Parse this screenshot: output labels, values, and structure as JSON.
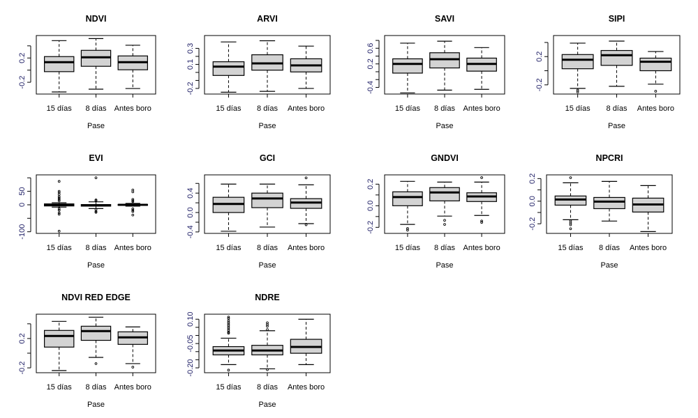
{
  "chart_data": [
    {
      "type": "box",
      "title": "NDVI",
      "xlabel": "Pase",
      "categories": [
        "15 días",
        "8 días",
        "Antes boro"
      ],
      "ylim": [
        -0.394,
        0.57
      ],
      "yticks": [
        0.4,
        0.2,
        0.0,
        -0.2
      ],
      "ytick_labels": [
        "",
        "0.2",
        "",
        "-0.2"
      ],
      "boxes": [
        {
          "whisker_low": -0.36,
          "q1": -0.025,
          "median": 0.131,
          "q3": 0.223,
          "whisker_high": 0.486,
          "outliers": []
        },
        {
          "whisker_low": -0.314,
          "q1": 0.063,
          "median": 0.211,
          "q3": 0.326,
          "whisker_high": 0.52,
          "outliers": []
        },
        {
          "whisker_low": -0.303,
          "q1": 0.006,
          "median": 0.131,
          "q3": 0.234,
          "whisker_high": 0.41,
          "outliers": []
        }
      ]
    },
    {
      "type": "box",
      "title": "ARVI",
      "xlabel": "Pase",
      "categories": [
        "15 días",
        "8 días",
        "Antes boro"
      ],
      "ylim": [
        -0.27,
        0.46
      ],
      "yticks": [
        0.3,
        0.2,
        0.1,
        0.0,
        -0.1,
        -0.2
      ],
      "ytick_labels": [
        "0.3",
        "",
        "0.1",
        "",
        "",
        "-0.2"
      ],
      "boxes": [
        {
          "whisker_low": -0.247,
          "q1": -0.038,
          "median": 0.072,
          "q3": 0.133,
          "whisker_high": 0.38,
          "outliers": []
        },
        {
          "whisker_low": -0.236,
          "q1": 0.028,
          "median": 0.112,
          "q3": 0.22,
          "whisker_high": 0.395,
          "outliers": []
        },
        {
          "whisker_low": -0.2,
          "q1": 0.006,
          "median": 0.087,
          "q3": 0.17,
          "whisker_high": 0.328,
          "outliers": []
        }
      ]
    },
    {
      "type": "box",
      "title": "SAVI",
      "xlabel": "Pase",
      "categories": [
        "15 días",
        "8 días",
        "Antes boro"
      ],
      "ylim": [
        -0.57,
        0.925
      ],
      "yticks": [
        0.8,
        0.6,
        0.4,
        0.2,
        0.0,
        -0.2,
        -0.4
      ],
      "ytick_labels": [
        "",
        "0.6",
        "",
        "0.2",
        "",
        "",
        "-0.4"
      ],
      "boxes": [
        {
          "whisker_low": -0.54,
          "q1": -0.035,
          "median": 0.2,
          "q3": 0.33,
          "whisker_high": 0.73,
          "outliers": []
        },
        {
          "whisker_low": -0.47,
          "q1": 0.097,
          "median": 0.32,
          "q3": 0.485,
          "whisker_high": 0.78,
          "outliers": []
        },
        {
          "whisker_low": -0.45,
          "q1": 0.015,
          "median": 0.2,
          "q3": 0.348,
          "whisker_high": 0.617,
          "outliers": []
        }
      ]
    },
    {
      "type": "box",
      "title": "SIPI",
      "xlabel": "Pase",
      "categories": [
        "15 días",
        "8 días",
        "Antes boro"
      ],
      "ylim": [
        -0.33,
        0.498
      ],
      "yticks": [
        0.4,
        0.2,
        0.0,
        -0.2
      ],
      "ytick_labels": [
        "",
        "0.2",
        "",
        "-0.2"
      ],
      "boxes": [
        {
          "whisker_low": -0.25,
          "q1": 0.028,
          "median": 0.155,
          "q3": 0.229,
          "whisker_high": 0.39,
          "outliers": [
            -0.276,
            -0.3
          ]
        },
        {
          "whisker_low": -0.22,
          "q1": 0.076,
          "median": 0.219,
          "q3": 0.286,
          "whisker_high": 0.419,
          "outliers": []
        },
        {
          "whisker_low": -0.19,
          "q1": 0.0,
          "median": 0.127,
          "q3": 0.178,
          "whisker_high": 0.272,
          "outliers": [
            -0.29
          ]
        }
      ]
    },
    {
      "type": "box",
      "title": "EVI",
      "xlabel": "Pase",
      "categories": [
        "15 días",
        "8 días",
        "Antes boro"
      ],
      "ylim": [
        -106,
        111
      ],
      "yticks": [
        100,
        50,
        0,
        -50,
        -100
      ],
      "ytick_labels": [
        "",
        "50",
        "0",
        "",
        "-100"
      ],
      "boxes": [
        {
          "whisker_low": -8.6,
          "q1": -4.3,
          "median": 0,
          "q3": 3.4,
          "whisker_high": 7.7,
          "outliers": [
            86.7,
            50,
            45,
            38,
            30,
            25,
            20,
            15,
            -15,
            -20,
            -30,
            -35,
            -98
          ]
        },
        {
          "whisker_low": -14,
          "q1": -5,
          "median": -2,
          "q3": 1,
          "whisker_high": 11,
          "outliers": [
            100,
            18,
            15,
            -18,
            -25,
            -28
          ]
        },
        {
          "whisker_low": -5,
          "q1": -2,
          "median": 0,
          "q3": 1.5,
          "whisker_high": 5,
          "outliers": [
            55,
            48,
            20,
            15,
            12,
            -15,
            -20,
            -25,
            -38
          ]
        }
      ]
    },
    {
      "type": "box",
      "title": "GCI",
      "xlabel": "Pase",
      "categories": [
        "15 días",
        "8 días",
        "Antes boro"
      ],
      "ylim": [
        -0.43,
        0.776
      ],
      "yticks": [
        0.6,
        0.4,
        0.2,
        0.0,
        -0.2,
        -0.4
      ],
      "ytick_labels": [
        "",
        "0.4",
        "",
        "0.0",
        "",
        "-0.4"
      ],
      "boxes": [
        {
          "whisker_low": -0.386,
          "q1": 0.0,
          "median": 0.176,
          "q3": 0.314,
          "whisker_high": 0.586,
          "outliers": []
        },
        {
          "whisker_low": -0.3,
          "q1": 0.1,
          "median": 0.29,
          "q3": 0.4,
          "whisker_high": 0.586,
          "outliers": []
        },
        {
          "whisker_low": -0.229,
          "q1": 0.086,
          "median": 0.205,
          "q3": 0.286,
          "whisker_high": 0.571,
          "outliers": [
            0.714,
            -0.252
          ]
        }
      ]
    },
    {
      "type": "box",
      "title": "GNDVI",
      "xlabel": "Pase",
      "categories": [
        "15 días",
        "8 días",
        "Antes boro"
      ],
      "ylim": [
        -0.256,
        0.286
      ],
      "yticks": [
        0.2,
        0.1,
        0.0,
        -0.1,
        -0.2
      ],
      "ytick_labels": [
        "0.2",
        "",
        "0.0",
        "",
        "-0.2"
      ],
      "boxes": [
        {
          "whisker_low": -0.173,
          "q1": 0.0,
          "median": 0.08,
          "q3": 0.129,
          "whisker_high": 0.226,
          "outliers": [
            -0.211,
            -0.226
          ]
        },
        {
          "whisker_low": -0.096,
          "q1": 0.045,
          "median": 0.123,
          "q3": 0.168,
          "whisker_high": 0.219,
          "outliers": [
            -0.135,
            -0.173
          ]
        },
        {
          "whisker_low": -0.09,
          "q1": 0.039,
          "median": 0.086,
          "q3": 0.12,
          "whisker_high": 0.219,
          "outliers": [
            0.26,
            -0.141,
            -0.154
          ]
        }
      ]
    },
    {
      "type": "box",
      "title": "NPCRI",
      "xlabel": "Pase",
      "categories": [
        "15 días",
        "8 días",
        "Antes boro"
      ],
      "ylim": [
        -0.285,
        0.233
      ],
      "yticks": [
        0.2,
        0.1,
        0.0,
        -0.1,
        -0.2
      ],
      "ytick_labels": [
        "0.2",
        "",
        "0.0",
        "",
        "-0.2"
      ],
      "boxes": [
        {
          "whisker_low": -0.164,
          "q1": -0.035,
          "median": 0.015,
          "q3": 0.046,
          "whisker_high": 0.163,
          "outliers": [
            0.208,
            -0.176,
            -0.193,
            -0.209,
            -0.244
          ]
        },
        {
          "whisker_low": -0.176,
          "q1": -0.066,
          "median": -0.004,
          "q3": 0.033,
          "whisker_high": 0.175,
          "outliers": []
        },
        {
          "whisker_low": -0.269,
          "q1": -0.096,
          "median": -0.029,
          "q3": 0.027,
          "whisker_high": 0.138,
          "outliers": []
        }
      ]
    },
    {
      "type": "box",
      "title": "NDVI RED EDGE",
      "xlabel": "Pase",
      "categories": [
        "15 días",
        "8 días",
        "Antes boro"
      ],
      "ylim": [
        -0.266,
        0.531
      ],
      "yticks": [
        0.4,
        0.2,
        0.0,
        -0.2
      ],
      "ytick_labels": [
        "",
        "0.2",
        "",
        "-0.2"
      ],
      "boxes": [
        {
          "whisker_low": -0.236,
          "q1": 0.083,
          "median": 0.235,
          "q3": 0.31,
          "whisker_high": 0.433,
          "outliers": []
        },
        {
          "whisker_low": -0.057,
          "q1": 0.175,
          "median": 0.301,
          "q3": 0.367,
          "whisker_high": 0.49,
          "outliers": [
            -0.142
          ]
        },
        {
          "whisker_low": -0.142,
          "q1": 0.12,
          "median": 0.216,
          "q3": 0.291,
          "whisker_high": 0.358,
          "outliers": [
            -0.19
          ]
        }
      ]
    },
    {
      "type": "box",
      "title": "NDRE",
      "xlabel": "Pase",
      "categories": [
        "15 días",
        "8 días",
        "Antes boro"
      ],
      "ylim": [
        -0.23,
        0.131
      ],
      "yticks": [
        0.1,
        0.05,
        0.0,
        -0.05,
        -0.1,
        -0.15,
        -0.2
      ],
      "ytick_labels": [
        "0.10",
        "",
        "",
        "-0.05",
        "",
        "",
        "-0.20"
      ],
      "boxes": [
        {
          "whisker_low": -0.18,
          "q1": -0.12,
          "median": -0.093,
          "q3": -0.069,
          "whisker_high": -0.017,
          "outliers": [
            0.113,
            0.104,
            0.09,
            0.08,
            0.07,
            0.06,
            0.05,
            0.04,
            0.03,
            0.02,
            0.014,
            -0.214
          ]
        },
        {
          "whisker_low": -0.206,
          "q1": -0.12,
          "median": -0.093,
          "q3": -0.061,
          "whisker_high": 0.029,
          "outliers": [
            0.078,
            0.067,
            0.057,
            0.036,
            -0.211
          ]
        },
        {
          "whisker_low": -0.18,
          "q1": -0.11,
          "median": -0.071,
          "q3": -0.024,
          "whisker_high": 0.1,
          "outliers": []
        }
      ]
    }
  ],
  "colors": {
    "box_fill": "#d3d3d3",
    "stroke": "#000000",
    "ytick_text": "#1f1f66"
  }
}
